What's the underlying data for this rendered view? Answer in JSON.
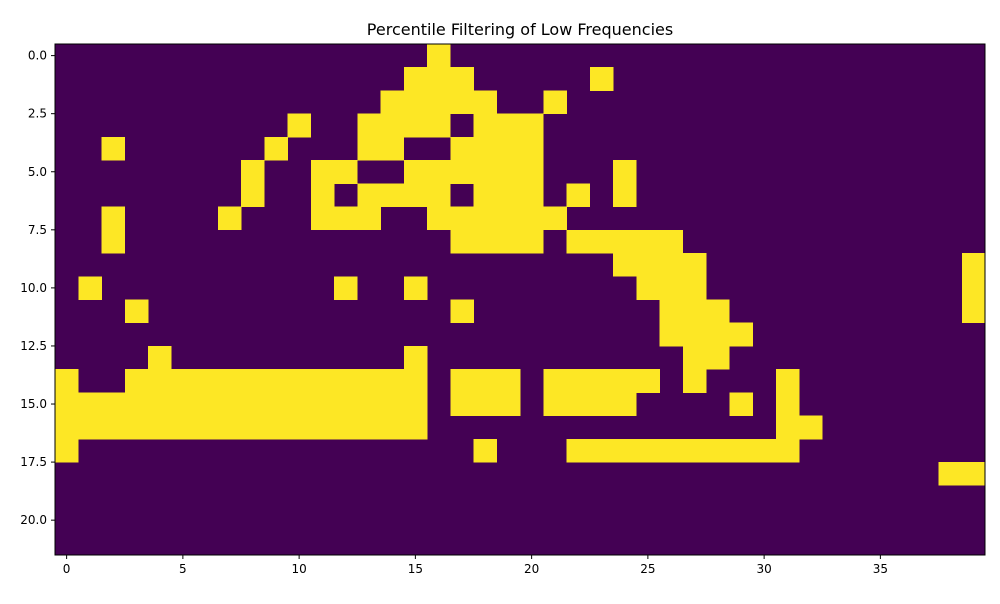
{
  "chart_data": {
    "type": "heatmap",
    "title": "Percentile Filtering of Low Frequencies",
    "xlabel": "",
    "ylabel": "",
    "n_cols": 40,
    "n_rows": 22,
    "xlim": [
      -0.5,
      39.5
    ],
    "ylim": [
      21.5,
      -0.5
    ],
    "xticks": [
      0,
      5,
      10,
      15,
      20,
      25,
      30,
      35
    ],
    "xtick_labels": [
      "0",
      "5",
      "10",
      "15",
      "20",
      "25",
      "30",
      "35"
    ],
    "yticks": [
      0,
      2.5,
      5,
      7.5,
      10,
      12.5,
      15,
      17.5,
      20
    ],
    "ytick_labels": [
      "0.0",
      "2.5",
      "5.0",
      "7.5",
      "10.0",
      "12.5",
      "15.0",
      "17.5",
      "20.0"
    ],
    "grid": false,
    "colormap": "viridis",
    "colors": {
      "low": "#440154",
      "high": "#fde725"
    },
    "value_encoding": "each row lists [start_col, end_col] inclusive runs of value 1; all other cells are 0",
    "rows": [
      [
        [
          16,
          16
        ]
      ],
      [
        [
          15,
          17
        ],
        [
          23,
          23
        ]
      ],
      [
        [
          14,
          18
        ],
        [
          21,
          21
        ]
      ],
      [
        [
          10,
          10
        ],
        [
          13,
          16
        ],
        [
          18,
          20
        ]
      ],
      [
        [
          2,
          2
        ],
        [
          9,
          9
        ],
        [
          13,
          14
        ],
        [
          17,
          20
        ]
      ],
      [
        [
          8,
          8
        ],
        [
          11,
          12
        ],
        [
          15,
          20
        ],
        [
          24,
          24
        ]
      ],
      [
        [
          8,
          8
        ],
        [
          11,
          11
        ],
        [
          13,
          16
        ],
        [
          18,
          20
        ],
        [
          22,
          22
        ],
        [
          24,
          24
        ]
      ],
      [
        [
          2,
          2
        ],
        [
          7,
          7
        ],
        [
          11,
          13
        ],
        [
          16,
          21
        ]
      ],
      [
        [
          2,
          2
        ],
        [
          17,
          20
        ],
        [
          22,
          26
        ]
      ],
      [
        [
          24,
          27
        ],
        [
          39,
          39
        ]
      ],
      [
        [
          1,
          1
        ],
        [
          12,
          12
        ],
        [
          15,
          15
        ],
        [
          25,
          27
        ],
        [
          39,
          39
        ]
      ],
      [
        [
          3,
          3
        ],
        [
          17,
          17
        ],
        [
          26,
          28
        ],
        [
          39,
          39
        ]
      ],
      [
        [
          26,
          29
        ]
      ],
      [
        [
          4,
          4
        ],
        [
          15,
          15
        ],
        [
          27,
          28
        ]
      ],
      [
        [
          0,
          0
        ],
        [
          3,
          15
        ],
        [
          17,
          19
        ],
        [
          21,
          25
        ],
        [
          27,
          27
        ],
        [
          31,
          31
        ]
      ],
      [
        [
          0,
          15
        ],
        [
          17,
          19
        ],
        [
          21,
          24
        ],
        [
          29,
          29
        ],
        [
          31,
          31
        ]
      ],
      [
        [
          0,
          15
        ],
        [
          31,
          32
        ]
      ],
      [
        [
          0,
          0
        ],
        [
          18,
          18
        ],
        [
          22,
          31
        ]
      ],
      [
        [
          38,
          39
        ]
      ],
      [],
      [],
      []
    ]
  }
}
